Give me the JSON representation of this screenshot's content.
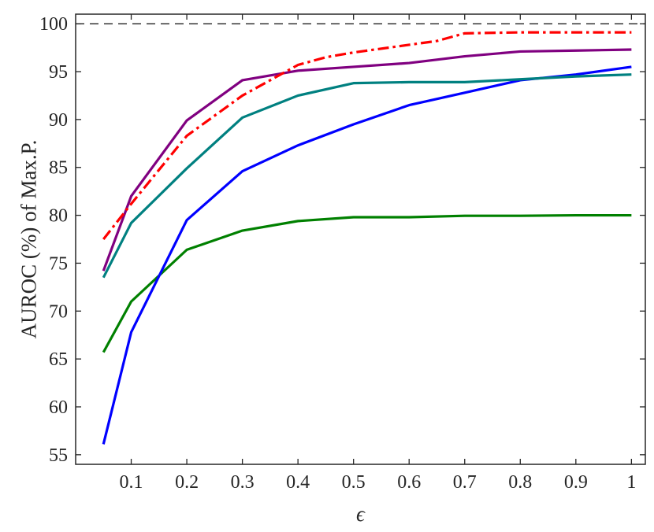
{
  "chart_data": {
    "type": "line",
    "title": "",
    "xlabel": "ϵ",
    "ylabel": "AUROC (%) of Max.P.",
    "xlim": [
      0,
      1.025
    ],
    "ylim": [
      54,
      101
    ],
    "xticks": [
      0.1,
      0.2,
      0.3,
      0.4,
      0.5,
      0.6,
      0.7,
      0.8,
      0.9,
      1
    ],
    "xtick_labels": [
      "0.1",
      "0.2",
      "0.3",
      "0.4",
      "0.5",
      "0.6",
      "0.7",
      "0.8",
      "0.9",
      "1"
    ],
    "yticks": [
      55,
      60,
      65,
      70,
      75,
      80,
      85,
      90,
      95,
      100
    ],
    "ytick_labels": [
      "55",
      "60",
      "65",
      "70",
      "75",
      "80",
      "85",
      "90",
      "95",
      "100"
    ],
    "grid": false,
    "legend": "none",
    "reference_lines": [
      {
        "y": 100,
        "color": "#222222",
        "style": "dashed"
      }
    ],
    "series": [
      {
        "color": "#008000",
        "style": "solid",
        "x": [
          0.05,
          0.1,
          0.2,
          0.3,
          0.4,
          0.5,
          0.6,
          0.7,
          0.8,
          0.9,
          1.0
        ],
        "y": [
          65.7,
          71.0,
          76.4,
          78.4,
          79.4,
          79.8,
          79.8,
          79.95,
          79.95,
          80.0,
          80.0
        ]
      },
      {
        "color": "#0000ff",
        "style": "solid",
        "x": [
          0.05,
          0.1,
          0.2,
          0.3,
          0.4,
          0.5,
          0.6,
          0.7,
          0.8,
          0.9,
          1.0
        ],
        "y": [
          56.1,
          67.8,
          79.5,
          84.6,
          87.3,
          89.5,
          91.5,
          92.8,
          94.1,
          94.7,
          95.5
        ]
      },
      {
        "color": "#008080",
        "style": "solid",
        "x": [
          0.05,
          0.1,
          0.2,
          0.3,
          0.4,
          0.5,
          0.6,
          0.7,
          0.8,
          0.9,
          1.0
        ],
        "y": [
          73.5,
          79.2,
          84.9,
          90.2,
          92.5,
          93.8,
          93.9,
          93.9,
          94.2,
          94.5,
          94.7
        ]
      },
      {
        "color": "#800080",
        "style": "solid",
        "x": [
          0.05,
          0.1,
          0.2,
          0.3,
          0.4,
          0.5,
          0.6,
          0.7,
          0.8,
          0.9,
          1.0
        ],
        "y": [
          74.2,
          82.0,
          89.9,
          94.1,
          95.1,
          95.5,
          95.9,
          96.6,
          97.1,
          97.2,
          97.3
        ]
      },
      {
        "color": "#ff0000",
        "style": "dashdot",
        "x": [
          0.05,
          0.1,
          0.2,
          0.3,
          0.4,
          0.45,
          0.5,
          0.6,
          0.65,
          0.7,
          0.8,
          0.9,
          1.0
        ],
        "y": [
          77.5,
          81.2,
          88.3,
          92.5,
          95.7,
          96.5,
          97.0,
          97.8,
          98.2,
          99.0,
          99.1,
          99.1,
          99.1
        ]
      }
    ]
  }
}
